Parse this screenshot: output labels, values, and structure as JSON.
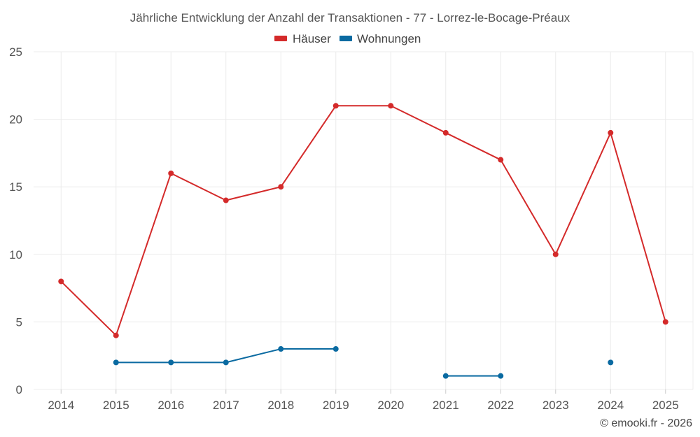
{
  "chart_data": {
    "type": "line",
    "title": "Jährliche Entwicklung der Anzahl der Transaktionen - 77 - Lorrez-le-Bocage-Préaux",
    "categories": [
      "2014",
      "2015",
      "2016",
      "2017",
      "2018",
      "2019",
      "2020",
      "2021",
      "2022",
      "2023",
      "2024",
      "2025"
    ],
    "series": [
      {
        "name": "Häuser",
        "color": "#d42a2a",
        "values": [
          8,
          4,
          16,
          14,
          15,
          21,
          21,
          19,
          17,
          10,
          19,
          5
        ]
      },
      {
        "name": "Wohnungen",
        "color": "#0a6aa1",
        "values": [
          null,
          2,
          2,
          2,
          3,
          3,
          null,
          1,
          1,
          null,
          2,
          null
        ]
      }
    ],
    "yticks": [
      0,
      5,
      10,
      15,
      20,
      25
    ],
    "ylim": [
      0,
      25
    ],
    "grid": true,
    "legend_position": "top-center",
    "xlabel": "",
    "ylabel": ""
  },
  "credit": "© emooki.fr - 2026"
}
